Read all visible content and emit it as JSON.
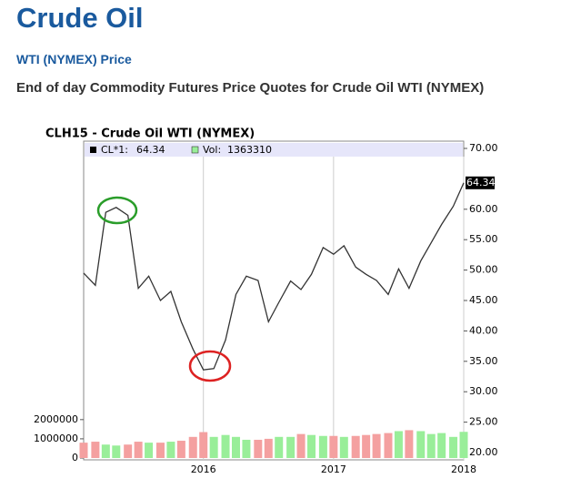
{
  "header": {
    "title": "Crude Oil",
    "subtitle": "WTI (NYMEX) Price",
    "description": "End of day Commodity Futures Price Quotes for Crude Oil WTI (NYMEX)"
  },
  "chart_data": {
    "type": "line",
    "title": "CLH15 - Crude Oil WTI (NYMEX)",
    "x": [
      2015.08,
      2015.17,
      2015.25,
      2015.33,
      2015.42,
      2015.5,
      2015.58,
      2015.67,
      2015.75,
      2015.83,
      2015.92,
      2016,
      2016.08,
      2016.17,
      2016.25,
      2016.33,
      2016.42,
      2016.5,
      2016.58,
      2016.67,
      2016.75,
      2016.83,
      2016.92,
      2017,
      2017.08,
      2017.17,
      2017.25,
      2017.33,
      2017.42,
      2017.5,
      2017.58,
      2017.67,
      2017.75,
      2017.83,
      2017.92,
      2018
    ],
    "series": [
      {
        "name": "CL*1:",
        "color": "#333333",
        "values": [
          49.5,
          47.5,
          59.5,
          60.3,
          59,
          47,
          49,
          45,
          46.5,
          41.5,
          37,
          33.6,
          33.8,
          38.5,
          46,
          49,
          48.3,
          41.5,
          44.7,
          48.2,
          46.8,
          49.3,
          53.7,
          52.6,
          54,
          50.5,
          49.3,
          48.3,
          46,
          50.2,
          47,
          51.5,
          54.5,
          57.5,
          60.5,
          64.34
        ]
      },
      {
        "name": "Vol:",
        "type": "bar",
        "axis": "y2",
        "up_color": "#99ee99",
        "down_color": "#f4a0a0",
        "values": [
          800000,
          850000,
          700000,
          650000,
          700000,
          850000,
          800000,
          800000,
          850000,
          900000,
          1100000,
          1350000,
          1100000,
          1200000,
          1100000,
          950000,
          950000,
          1000000,
          1100000,
          1100000,
          1250000,
          1200000,
          1150000,
          1150000,
          1100000,
          1150000,
          1200000,
          1250000,
          1300000,
          1400000,
          1450000,
          1400000,
          1250000,
          1300000,
          1100000,
          1363310
        ]
      }
    ],
    "xlim": [
      2015.08,
      2018
    ],
    "xticks": [
      2016,
      2017,
      2018
    ],
    "ylim": [
      20,
      70
    ],
    "yticks": [
      {
        "value": 20,
        "label": "20.00"
      },
      {
        "value": 25,
        "label": "25.00"
      },
      {
        "value": 30,
        "label": "30.00"
      },
      {
        "value": 35,
        "label": "35.00"
      },
      {
        "value": 40,
        "label": "40.00"
      },
      {
        "value": 45,
        "label": "45.00"
      },
      {
        "value": 50,
        "label": "50.00"
      },
      {
        "value": 55,
        "label": "55.00"
      },
      {
        "value": 60,
        "label": "60.00"
      },
      {
        "value": 70,
        "label": "70.00"
      }
    ],
    "y2lim": [
      0,
      16500000
    ],
    "y2ticks": [
      0,
      1000000,
      2000000
    ],
    "grid": true
  }
}
